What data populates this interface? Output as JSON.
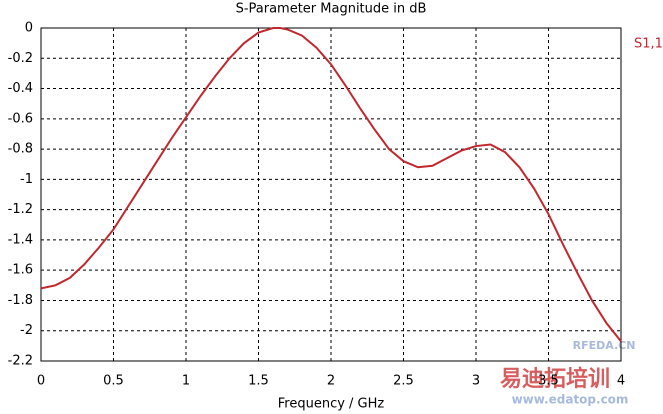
{
  "chart_data": {
    "type": "line",
    "title": "S-Parameter Magnitude in dB",
    "xlabel": "Frequency / GHz",
    "x": [
      0,
      0.1,
      0.2,
      0.3,
      0.4,
      0.5,
      0.6,
      0.7,
      0.8,
      0.9,
      1.0,
      1.1,
      1.2,
      1.3,
      1.4,
      1.5,
      1.6,
      1.65,
      1.7,
      1.8,
      1.9,
      2.0,
      2.1,
      2.2,
      2.3,
      2.4,
      2.5,
      2.6,
      2.7,
      2.8,
      2.9,
      3.0,
      3.1,
      3.2,
      3.3,
      3.4,
      3.5,
      3.6,
      3.7,
      3.8,
      3.9,
      4.0
    ],
    "series": [
      {
        "name": "S1,1",
        "color": "#c0282d",
        "values": [
          -1.72,
          -1.7,
          -1.65,
          -1.56,
          -1.45,
          -1.33,
          -1.18,
          -1.03,
          -0.88,
          -0.73,
          -0.59,
          -0.45,
          -0.32,
          -0.2,
          -0.1,
          -0.03,
          0.0,
          0.0,
          -0.01,
          -0.05,
          -0.13,
          -0.24,
          -0.38,
          -0.53,
          -0.67,
          -0.8,
          -0.88,
          -0.92,
          -0.91,
          -0.86,
          -0.81,
          -0.78,
          -0.77,
          -0.82,
          -0.92,
          -1.06,
          -1.23,
          -1.43,
          -1.62,
          -1.8,
          -1.95,
          -2.07
        ]
      }
    ],
    "xlim": [
      0,
      4
    ],
    "xticks": [
      0,
      0.5,
      1,
      1.5,
      2,
      2.5,
      3,
      3.5,
      4
    ],
    "ylim": [
      -2.2,
      0
    ],
    "yticks": [
      0,
      -0.2,
      -0.4,
      -0.6,
      -0.8,
      -1,
      -1.2,
      -1.4,
      -1.6,
      -1.8,
      -2,
      -2.2
    ],
    "grid": true,
    "legend_position": "right",
    "watermarks": [
      "RFEDA.CN",
      "易迪拓培训",
      "www.edatop.com"
    ]
  }
}
